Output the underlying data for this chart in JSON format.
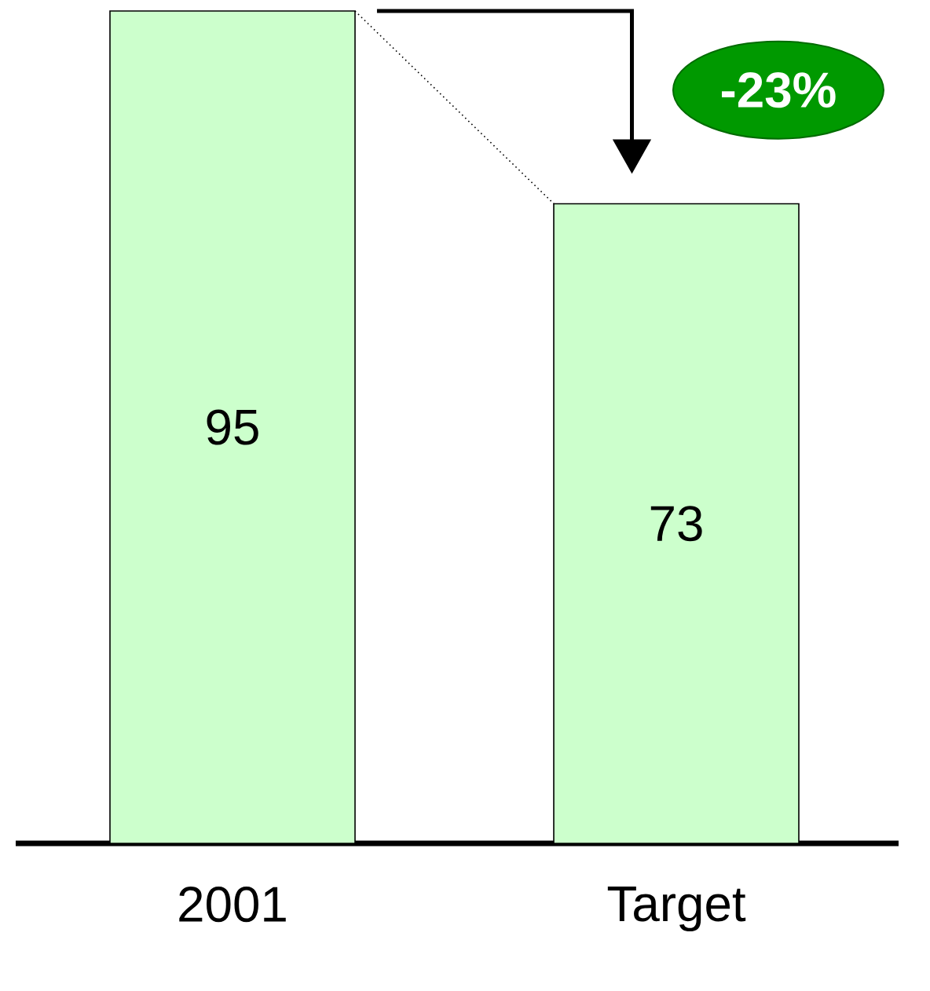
{
  "chart_data": {
    "type": "bar",
    "categories": [
      "2001",
      "Target"
    ],
    "values": [
      95,
      73
    ],
    "color": "#ccffcc",
    "data_labels": true,
    "ylim": [
      0,
      95
    ],
    "annotations": [
      "-23%"
    ]
  }
}
